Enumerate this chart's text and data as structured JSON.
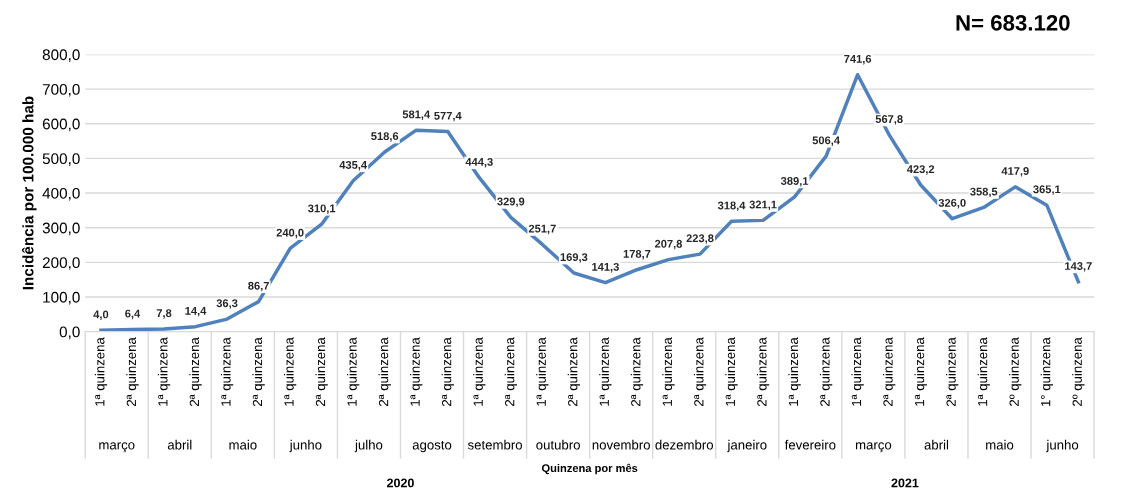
{
  "chart_data": {
    "type": "line",
    "ylabel": "Incidência por 100.000 hab",
    "categories": [
      "1ª quinzena",
      "2ª quinzena",
      "1ª quinzena",
      "2ª quinzena",
      "1ª quinzena",
      "2ª quinzena",
      "1ª quinzena",
      "2ª quinzena",
      "1ª quinzena",
      "2ª quinzena",
      "1ª quinzena",
      "2ª quinzena",
      "1ª quinzena",
      "2ª quinzena",
      "1ª quinzena",
      "2ª quinzena",
      "1ª quinzena",
      "2ª quinzena",
      "1ª quinzena",
      "2ª quinzena",
      "1ª quinzena",
      "2ª quinzena",
      "1ª quinzena",
      "2ª quinzena",
      "1ª quinzena",
      "2ª quinzena",
      "1ª quinzena",
      "2ª quinzena",
      "1ª quinzena",
      "2º quinzena",
      "1° quinzena",
      "2º quinzena"
    ],
    "series": [
      {
        "color": "#4f81bd",
        "values": [
          4.0,
          6.4,
          7.8,
          14.4,
          36.3,
          86.7,
          240.0,
          310.1,
          435.4,
          518.6,
          581.4,
          577.4,
          444.3,
          329.9,
          251.7,
          169.3,
          141.3,
          178.7,
          207.8,
          223.8,
          318.4,
          321.1,
          389.1,
          506.4,
          741.6,
          567.8,
          423.2,
          326.0,
          358.5,
          417.9,
          365.1,
          143.7
        ],
        "value_labels": [
          "4,0",
          "6,4",
          "7,8",
          "14,4",
          "36,3",
          "86,7",
          "240,0",
          "310,1",
          "435,4",
          "518,6",
          "581,4",
          "577,4",
          "444,3",
          "329,9",
          "251,7",
          "169,3",
          "141,3",
          "178,7",
          "207,8",
          "223,8",
          "318,4",
          "321,1",
          "389,1",
          "506,4",
          "741,6",
          "567,8",
          "423,2",
          "326,0",
          "358,5",
          "417,9",
          "365,1",
          "143,7"
        ]
      }
    ],
    "ylim": [
      0,
      800
    ],
    "yticks": [
      {
        "value": 0,
        "label": "0,0"
      },
      {
        "value": 100,
        "label": "100,0"
      },
      {
        "value": 200,
        "label": "200,0"
      },
      {
        "value": 300,
        "label": "300,0"
      },
      {
        "value": 400,
        "label": "400,0"
      },
      {
        "value": 500,
        "label": "500,0"
      },
      {
        "value": 600,
        "label": "600,0"
      },
      {
        "value": 700,
        "label": "700,0"
      },
      {
        "value": 800,
        "label": "800,0"
      }
    ],
    "grid": "y",
    "marker": "none",
    "line_style": "solid",
    "legend": false,
    "annotations": [
      "N= 683.120",
      "março",
      "abril",
      "maio",
      "junho",
      "julho",
      "agosto",
      "setembro",
      "outubro",
      "novembro",
      "dezembro",
      "janeiro",
      "fevereiro",
      "março",
      "abril",
      "maio",
      "junho",
      "2020",
      "2021",
      "Quinzena por mês"
    ]
  }
}
